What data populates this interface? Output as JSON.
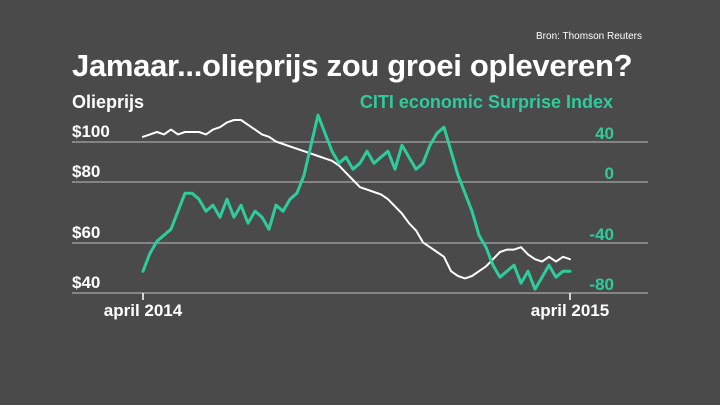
{
  "source": "Bron: Thomson Reuters",
  "title": "Jamaar...olieprijs zou groei opleveren?",
  "chart_data": {
    "type": "line",
    "title": "Jamaar...olieprijs zou groei opleveren?",
    "grid": true,
    "x_ticks": [
      "april 2014",
      "april 2015"
    ],
    "left_axis": {
      "label": "Olieprijs",
      "ticks": [
        "$100",
        "$80",
        "$60",
        "$40"
      ],
      "tick_values": [
        100,
        80,
        60,
        40
      ],
      "range": [
        38,
        118
      ]
    },
    "right_axis": {
      "label": "CITI economic Surprise Index",
      "ticks": [
        "40",
        "0",
        "-40",
        "-80"
      ],
      "tick_values": [
        40,
        0,
        -40,
        -80
      ],
      "range": [
        -84,
        76
      ]
    },
    "series": [
      {
        "name": "Olieprijs",
        "axis": "left",
        "color": "#ffffff",
        "values": [
          106,
          107,
          108,
          107,
          109,
          107,
          108,
          108,
          108,
          107,
          109,
          110,
          112,
          113,
          113,
          111,
          109,
          107,
          106,
          104,
          103,
          102,
          101,
          100,
          99,
          98,
          97,
          96,
          94,
          91,
          88,
          85,
          84,
          83,
          82,
          80,
          77,
          74,
          70,
          67,
          62,
          60,
          58,
          56,
          50,
          48,
          47,
          48,
          50,
          52,
          55,
          58,
          59,
          59,
          60,
          57,
          55,
          54,
          56,
          54,
          56,
          55
        ]
      },
      {
        "name": "CITI economic Surprise Index",
        "axis": "right",
        "color": "#2ecc9a",
        "values": [
          -60,
          -45,
          -35,
          -30,
          -25,
          -10,
          5,
          5,
          0,
          -10,
          -5,
          -15,
          0,
          -15,
          -5,
          -20,
          -10,
          -15,
          -25,
          -5,
          -10,
          0,
          5,
          20,
          45,
          70,
          55,
          40,
          30,
          35,
          25,
          30,
          40,
          30,
          35,
          40,
          25,
          45,
          35,
          25,
          30,
          45,
          55,
          60,
          40,
          20,
          5,
          -10,
          -30,
          -40,
          -55,
          -65,
          -60,
          -55,
          -70,
          -60,
          -75,
          -65,
          -55,
          -65,
          -60,
          -60
        ]
      }
    ]
  }
}
